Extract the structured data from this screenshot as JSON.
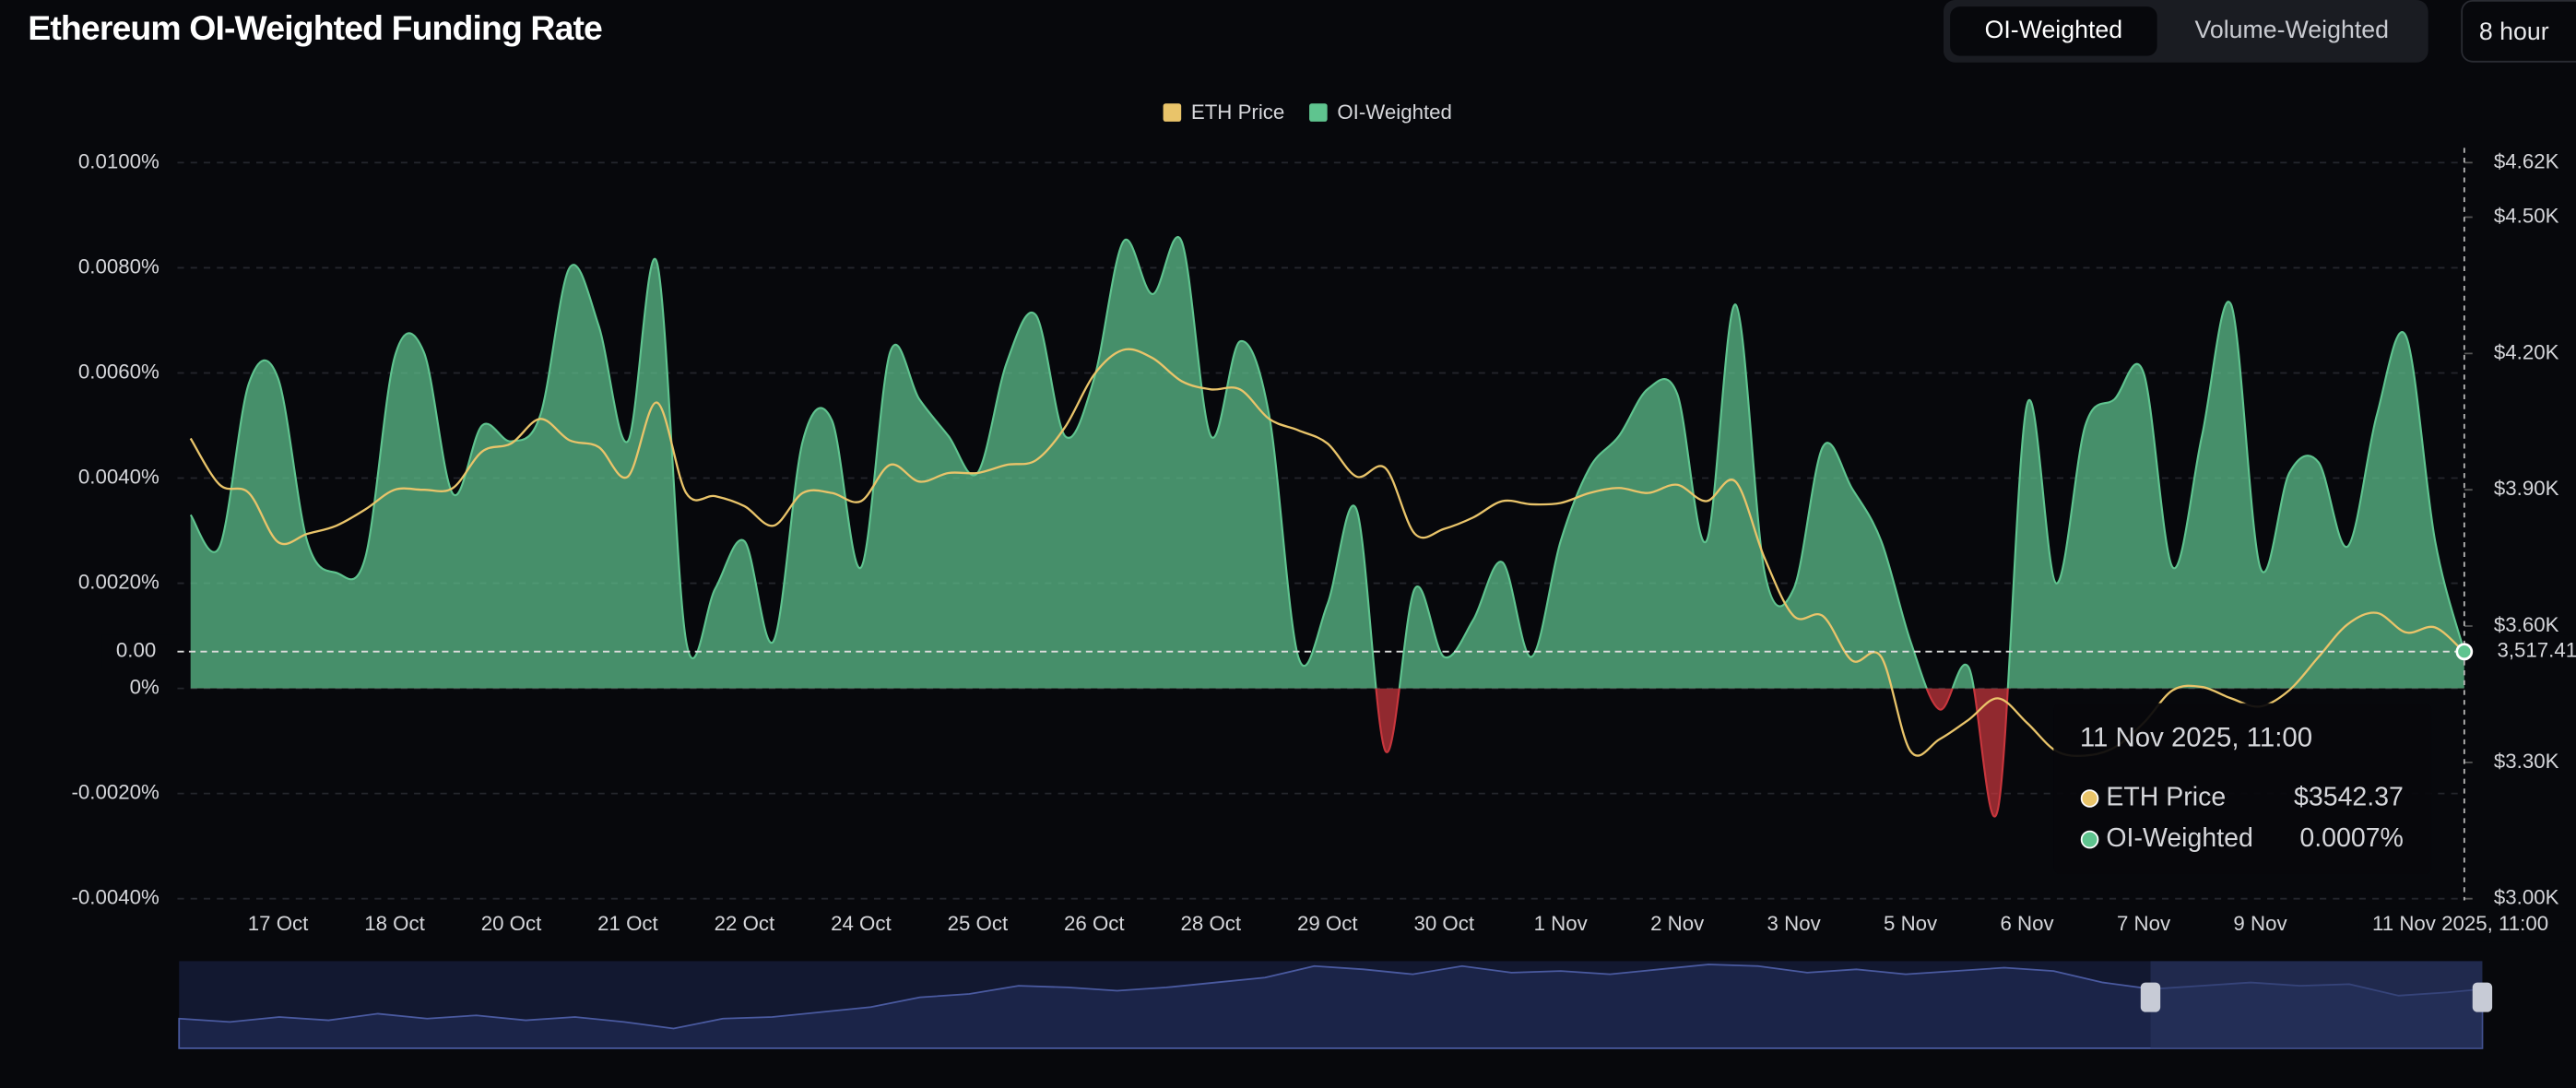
{
  "header": {
    "title": "Ethereum OI-Weighted Funding Rate",
    "tabs": [
      "OI-Weighted",
      "Volume-Weighted"
    ],
    "interval": "8 hour"
  },
  "chart_data": {
    "type": "area",
    "x": [
      null,
      null,
      null,
      "17 Oct",
      null,
      null,
      null,
      "18 Oct",
      null,
      null,
      null,
      "20 Oct",
      null,
      null,
      null,
      "21 Oct",
      null,
      null,
      null,
      "22 Oct",
      null,
      null,
      null,
      "24 Oct",
      null,
      null,
      null,
      "25 Oct",
      null,
      null,
      null,
      "26 Oct",
      null,
      null,
      null,
      "28 Oct",
      null,
      null,
      null,
      "29 Oct",
      null,
      null,
      null,
      "30 Oct",
      null,
      null,
      null,
      "1 Nov",
      null,
      null,
      null,
      "2 Nov",
      null,
      null,
      null,
      "3 Nov",
      null,
      null,
      null,
      "5 Nov",
      null,
      null,
      null,
      "6 Nov",
      null,
      null,
      null,
      "7 Nov",
      null,
      null,
      null,
      "9 Nov",
      null,
      null,
      null,
      null,
      null,
      null,
      null
    ],
    "series": [
      {
        "name": "ETH Price",
        "color": "#e9c46a",
        "axis": "y2",
        "values": [
          4013,
          3911,
          3893,
          3785,
          3803,
          3821,
          3857,
          3900,
          3900,
          3904,
          3984,
          4002,
          4056,
          4009,
          3994,
          3929,
          4092,
          3893,
          3886,
          3864,
          3821,
          3893,
          3893,
          3875,
          3955,
          3918,
          3937,
          3937,
          3955,
          3965,
          4038,
          4154,
          4208,
          4190,
          4139,
          4121,
          4121,
          4056,
          4031,
          4002,
          3929,
          3947,
          3803,
          3814,
          3839,
          3875,
          3868,
          3871,
          3893,
          3904,
          3893,
          3911,
          3875,
          3918,
          3749,
          3622,
          3622,
          3524,
          3532,
          3325,
          3351,
          3394,
          3441,
          3387,
          3325,
          3315,
          3333,
          3387,
          3459,
          3466,
          3441,
          3423,
          3459,
          3532,
          3604,
          3629,
          3586,
          3597,
          3542.37
        ]
      },
      {
        "name": "OI-Weighted",
        "color": "#5fc48f",
        "negative_color": "#c8363d",
        "values": [
          0.0033,
          0.0027,
          0.0058,
          0.0059,
          0.0028,
          0.0022,
          0.0025,
          0.0063,
          0.0064,
          0.0037,
          0.005,
          0.0047,
          0.0052,
          0.008,
          0.0069,
          0.0047,
          0.0081,
          0.0009,
          0.0019,
          0.0028,
          0.0009,
          0.0047,
          0.0051,
          0.0023,
          0.0064,
          0.0055,
          0.0048,
          0.0041,
          0.0062,
          0.0071,
          0.0048,
          0.0059,
          0.0085,
          0.0075,
          0.0085,
          0.0048,
          0.0066,
          0.0052,
          0.0006,
          0.0016,
          0.0034,
          -0.0012,
          0.0019,
          0.0006,
          0.0013,
          0.0024,
          0.0006,
          0.0028,
          0.0042,
          0.0048,
          0.0057,
          0.0056,
          0.0028,
          0.0073,
          0.0022,
          0.0019,
          0.0046,
          0.0038,
          0.0028,
          0.0009,
          -0.0004,
          0.0004,
          -0.0023,
          0.0054,
          0.002,
          0.005,
          0.0055,
          0.006,
          0.0023,
          0.0048,
          0.0073,
          0.0023,
          0.0041,
          0.0043,
          0.0027,
          0.0052,
          0.0067,
          0.0028,
          0.0007
        ]
      }
    ],
    "ylim": [
      -0.004,
      0.01
    ],
    "yticks": [
      {
        "value": 0.01,
        "label": "0.0100%"
      },
      {
        "value": 0.008,
        "label": "0.0080%"
      },
      {
        "value": 0.006,
        "label": "0.0060%"
      },
      {
        "value": 0.004,
        "label": "0.0040%"
      },
      {
        "value": 0.002,
        "label": "0.0020%"
      },
      {
        "value": 0,
        "label": "0%"
      },
      {
        "value": -0.002,
        "label": "-0.0020%"
      },
      {
        "value": -0.004,
        "label": "-0.0040%"
      }
    ],
    "y2lim": [
      3000,
      4620
    ],
    "y2ticks": [
      {
        "value": 4620,
        "label": "$4.62K"
      },
      {
        "value": 4500,
        "label": "$4.50K"
      },
      {
        "value": 4200,
        "label": "$4.20K"
      },
      {
        "value": 3900,
        "label": "$3.90K"
      },
      {
        "value": 3600,
        "label": "$3.60K"
      },
      {
        "value": 3300,
        "label": "$3.30K"
      },
      {
        "value": 3000,
        "label": "$3.00K"
      }
    ],
    "grid": true,
    "legend": "top"
  },
  "crosshair": {
    "left_label": "0.00",
    "right_label": "3,517.41",
    "x_label": "11 Nov 2025, 11:00"
  },
  "tooltip": {
    "date": "11 Nov 2025, 11:00",
    "rows": [
      {
        "label": "ETH Price",
        "value": "$3542.37"
      },
      {
        "label": "OI-Weighted",
        "value": "0.0007%"
      }
    ]
  }
}
